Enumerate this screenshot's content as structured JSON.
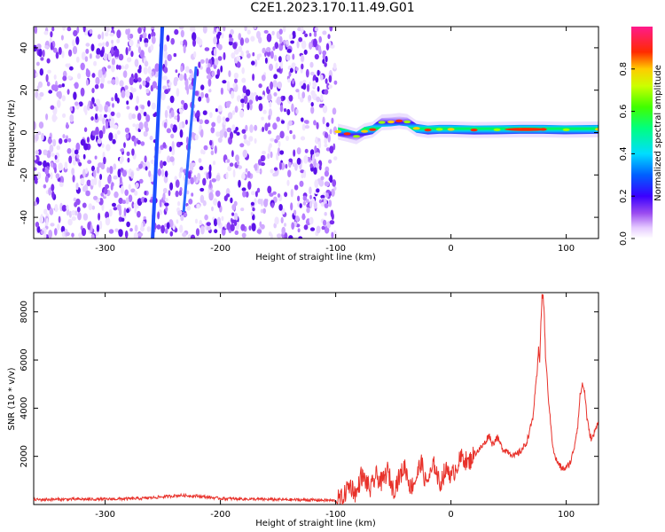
{
  "page_title": "C2E1.2023.170.11.49.G01",
  "colors": {
    "snr_line": "#e8312a",
    "axis": "#000000"
  },
  "chart_data": [
    {
      "type": "heatmap",
      "title": "C2E1.2023.170.11.49.G01",
      "xlabel": "Height of straight line (km)",
      "ylabel": "Frequency (Hz)",
      "xlim": [
        -362,
        128
      ],
      "ylim": [
        -50,
        50
      ],
      "x_ticks": [
        -300,
        -200,
        -100,
        0,
        100
      ],
      "y_ticks": [
        -40,
        -20,
        0,
        20,
        40
      ],
      "colorbar": {
        "label": "Normalized spectral amplitude",
        "range": [
          0.0,
          1.0
        ],
        "ticks": [
          "0.0",
          "0.2",
          "0.4",
          "0.6",
          "0.8"
        ],
        "colormap": "white-purple-blue-cyan-green-yellow-red-magenta"
      },
      "features": {
        "noise_region_x": [
          -362,
          -100
        ],
        "signal_region_x": [
          -100,
          128
        ],
        "signal_frequency": 0,
        "diagonal_streak": {
          "x_start": -255,
          "x_end": -253,
          "y_start": -50,
          "y_end": 50
        }
      },
      "signal_points": [
        [
          -98,
          0.4
        ],
        [
          -90,
          -0.6
        ],
        [
          -82,
          -1.8
        ],
        [
          -75,
          0.6
        ],
        [
          -68,
          1.4
        ],
        [
          -60,
          4.8
        ],
        [
          -52,
          5.0
        ],
        [
          -45,
          5.5
        ],
        [
          -38,
          5.0
        ],
        [
          -30,
          2.0
        ],
        [
          -20,
          1.2
        ],
        [
          -10,
          1.5
        ],
        [
          0,
          1.5
        ],
        [
          20,
          1.2
        ],
        [
          40,
          1.3
        ],
        [
          60,
          1.5
        ],
        [
          80,
          1.5
        ],
        [
          100,
          1.3
        ],
        [
          128,
          1.5
        ]
      ]
    },
    {
      "type": "line",
      "xlabel": "Height of straight line (km)",
      "ylabel": "SNR (10 * v/v)",
      "xlim": [
        -362,
        128
      ],
      "ylim": [
        0,
        8800
      ],
      "x_ticks": [
        -300,
        -200,
        -100,
        0,
        100
      ],
      "y_ticks": [
        2000,
        4000,
        6000,
        8000
      ],
      "series": [
        {
          "x": [
            -362,
            -330,
            -300,
            -270,
            -250,
            -235,
            -220,
            -200,
            -170,
            -140,
            -110,
            -100,
            -93,
            -90,
            -87,
            -82,
            -78,
            -73,
            -70,
            -65,
            -60,
            -55,
            -50,
            -45,
            -40,
            -35,
            -30,
            -26,
            -22,
            -18,
            -14,
            -10,
            -6,
            -2,
            0,
            5,
            10,
            15,
            20,
            25,
            30,
            33,
            36,
            40,
            45,
            50,
            55,
            60,
            65,
            68,
            71,
            73,
            75,
            76,
            77,
            78,
            79,
            80,
            81,
            82,
            84,
            86,
            88,
            90,
            93,
            96,
            100,
            104,
            107,
            110,
            112,
            114,
            116,
            118,
            120,
            122,
            124,
            126,
            128
          ],
          "y": [
            200,
            220,
            220,
            250,
            320,
            380,
            350,
            250,
            220,
            200,
            180,
            160,
            300,
            700,
            800,
            400,
            1200,
            900,
            600,
            1200,
            900,
            1400,
            600,
            1100,
            1600,
            700,
            1100,
            1800,
            900,
            1200,
            1700,
            800,
            1300,
            1500,
            1100,
            1600,
            2000,
            1700,
            2100,
            2300,
            2600,
            2900,
            2500,
            2800,
            2300,
            2200,
            2000,
            2200,
            2500,
            3000,
            3600,
            4600,
            5600,
            6500,
            6000,
            7500,
            8600,
            8700,
            7800,
            6200,
            4800,
            3600,
            2600,
            2000,
            1700,
            1500,
            1500,
            1800,
            2400,
            3300,
            4500,
            5000,
            4700,
            3600,
            3000,
            2700,
            2900,
            3200,
            3600
          ]
        }
      ]
    }
  ]
}
